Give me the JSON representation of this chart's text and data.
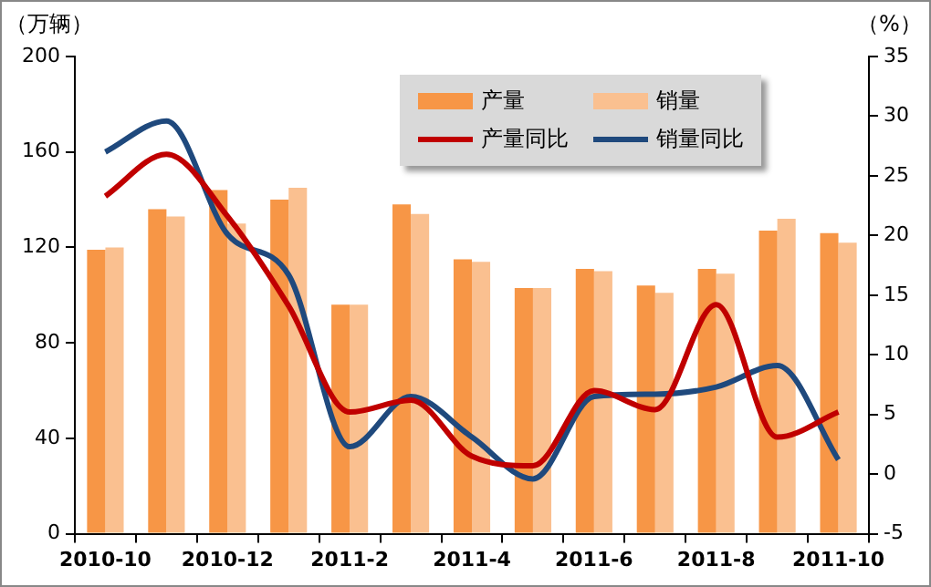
{
  "chart_data": {
    "type": "bar",
    "ylabel": "（万辆）",
    "y2label": "（%）",
    "categories": [
      "2010-10",
      null,
      "2010-12",
      null,
      "2011-2",
      null,
      "2011-4",
      null,
      "2011-6",
      null,
      "2011-8",
      null,
      "2011-10"
    ],
    "series": [
      {
        "name": "产量",
        "color": "#f79646",
        "values": [
          119,
          136,
          144,
          140,
          96,
          138,
          115,
          103,
          111,
          104,
          111,
          127,
          126
        ]
      },
      {
        "name": "销量",
        "color": "#fac090",
        "values": [
          120,
          133,
          130,
          145,
          96,
          134,
          114,
          103,
          110,
          101,
          109,
          132,
          122
        ]
      },
      {
        "name": "产量同比",
        "type": "line",
        "axis": "y2",
        "color": "#c00000",
        "values": [
          23.3,
          26.8,
          21.6,
          14.1,
          5.2,
          6.2,
          1.5,
          0.7,
          7.0,
          5.4,
          14.2,
          3.1,
          5.2
        ]
      },
      {
        "name": "销量同比",
        "type": "line",
        "axis": "y2",
        "color": "#1f497d",
        "values": [
          27.0,
          29.6,
          20.1,
          16.7,
          2.3,
          6.5,
          3.1,
          -0.4,
          6.5,
          6.7,
          7.3,
          9.1,
          1.2
        ]
      }
    ],
    "ylim": [
      0,
      200
    ],
    "yticks": [
      0,
      40,
      80,
      120,
      160,
      200
    ],
    "y2lim": [
      -5,
      35
    ],
    "y2ticks": [
      -5,
      0,
      5,
      10,
      15,
      20,
      25,
      30,
      35
    ],
    "grid": false,
    "legend": "top",
    "marker": "none",
    "line_style": "solid"
  }
}
